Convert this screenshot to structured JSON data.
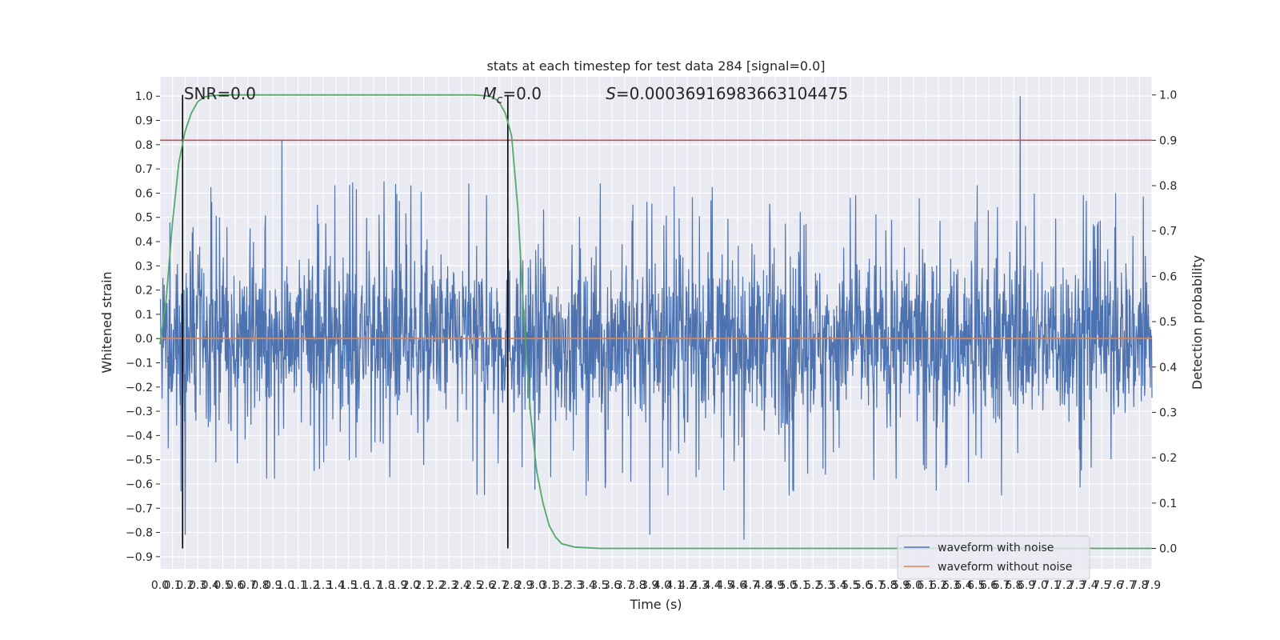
{
  "chart_data": {
    "type": "line",
    "title": "stats at each timestep for test data 284 [signal=0.0]",
    "xlabel": "Time (s)",
    "ylabel": "Whitened strain",
    "y2label": "Detection probability",
    "xlim": [
      0.0,
      7.9
    ],
    "ylim": [
      -0.95,
      1.08
    ],
    "y2lim": [
      -0.045,
      1.04
    ],
    "x_tick_step": 0.1,
    "y_ticks": [
      -0.9,
      -0.8,
      -0.7,
      -0.6,
      -0.5,
      -0.4,
      -0.3,
      -0.2,
      -0.1,
      0.0,
      0.1,
      0.2,
      0.3,
      0.4,
      0.5,
      0.6,
      0.7,
      0.8,
      0.9,
      1.0
    ],
    "y_tick_labels": [
      "−0.9",
      "−0.8",
      "−0.7",
      "−0.6",
      "−0.5",
      "−0.4",
      "−0.3",
      "−0.2",
      "−0.1",
      "0.0",
      "0.1",
      "0.2",
      "0.3",
      "0.4",
      "0.5",
      "0.6",
      "0.7",
      "0.8",
      "0.9",
      "1.0"
    ],
    "y2_ticks": [
      0.0,
      0.1,
      0.2,
      0.3,
      0.4,
      0.5,
      0.6,
      0.7,
      0.8,
      0.9,
      1.0
    ],
    "y2_tick_labels": [
      "0.0",
      "0.1",
      "0.2",
      "0.3",
      "0.4",
      "0.5",
      "0.6",
      "0.7",
      "0.8",
      "0.9",
      "1.0"
    ],
    "grid": true,
    "legend_position": "lower-right",
    "series": [
      {
        "name": "waveform with noise",
        "color": "#4c72b0",
        "axis": "left",
        "description_values": {
          "typical_min": -0.5,
          "typical_max": 0.5,
          "extremes": [
            {
              "x": 0.97,
              "y": 0.82
            },
            {
              "x": 6.85,
              "y": 1.0
            },
            {
              "x": 4.65,
              "y": -0.83
            },
            {
              "x": 0.2,
              "y": -0.81
            },
            {
              "x": 3.9,
              "y": -0.81
            }
          ]
        }
      },
      {
        "name": "waveform without noise",
        "color": "#dd8452",
        "axis": "left",
        "x": [
          0.0,
          7.9
        ],
        "y": [
          0.0,
          0.0
        ]
      },
      {
        "name": "detection probability",
        "color": "#55a868",
        "axis": "right",
        "x": [
          0.0,
          0.05,
          0.1,
          0.15,
          0.2,
          0.25,
          0.3,
          0.35,
          0.4,
          0.5,
          0.6,
          0.8,
          1.5,
          2.5,
          2.6,
          2.65,
          2.7,
          2.75,
          2.8,
          2.85,
          2.9,
          2.95,
          3.0,
          3.05,
          3.1,
          3.15,
          3.2,
          3.3,
          3.5,
          4.0,
          5.0,
          6.0,
          7.0,
          7.9
        ],
        "y": [
          0.45,
          0.55,
          0.72,
          0.85,
          0.92,
          0.96,
          0.985,
          0.995,
          0.998,
          1.0,
          1.0,
          1.0,
          1.0,
          1.0,
          0.998,
          0.995,
          0.985,
          0.96,
          0.91,
          0.75,
          0.5,
          0.3,
          0.17,
          0.1,
          0.05,
          0.025,
          0.01,
          0.003,
          0.0,
          0.0,
          0.0,
          0.0,
          0.0,
          0.0
        ]
      }
    ],
    "threshold": {
      "axis": "right",
      "y": 0.9,
      "color": "#c44e52"
    },
    "vlines": [
      {
        "x": 0.18,
        "y_from": 0.0,
        "y_to": 1.0,
        "axis": "right",
        "color": "#000000"
      },
      {
        "x": 2.77,
        "y_from": 0.0,
        "y_to": 1.0,
        "axis": "right",
        "color": "#000000"
      }
    ],
    "annotations": [
      {
        "text": "SNR=0.0",
        "x": 0.19
      },
      {
        "text_main": "M",
        "text_sub": "c",
        "text_rest": "=0.0",
        "x": 2.57
      },
      {
        "text_main": "S",
        "text_rest": "=0.00036916983663104475",
        "x": 3.55
      }
    ]
  }
}
